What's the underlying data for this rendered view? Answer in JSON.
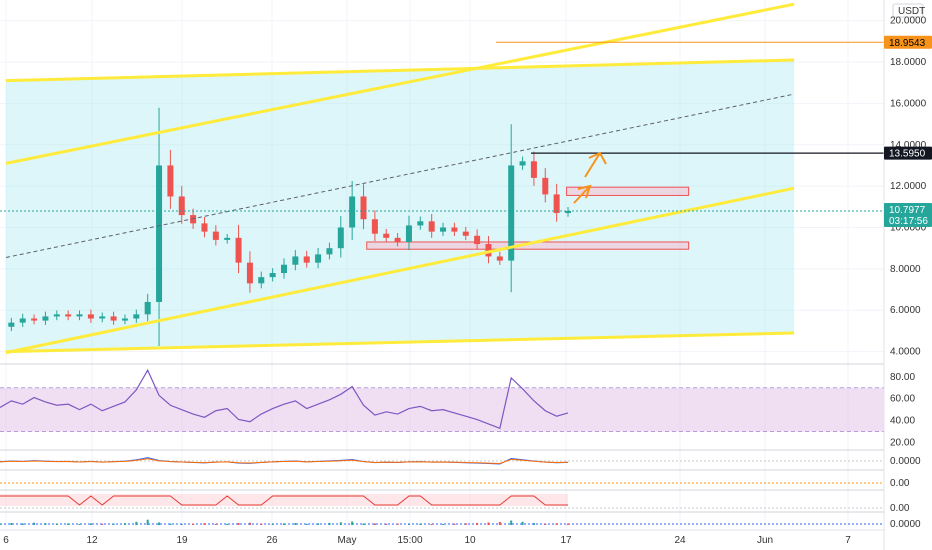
{
  "header": {
    "currency": "USDT"
  },
  "chart_data": {
    "type": "candlestick",
    "price_axis": {
      "ticks": [
        "20.0000",
        "18.0000",
        "16.0000",
        "14.0000",
        "12.0000",
        "10.0000",
        "8.0000",
        "6.0000",
        "4.0000"
      ],
      "range": [
        3.4,
        21.0
      ]
    },
    "time_axis": {
      "ticks": [
        "6",
        "12",
        "19",
        "26",
        "May",
        "15:00",
        "10",
        "17",
        "24",
        "Jun",
        "7"
      ]
    },
    "badges": {
      "high": {
        "text": "18.9543",
        "value": 18.9543,
        "color": "#f7931a"
      },
      "level": {
        "text": "13.5950",
        "value": 13.595,
        "color": "#131722"
      },
      "last": {
        "text": "10.7977",
        "value": 10.7977,
        "countdown": "03:17:56",
        "color": "#26a69a"
      }
    },
    "channel_lines": [
      {
        "from": {
          "day": 0,
          "price": 17.1
        },
        "to": {
          "day": 71,
          "price": 18.1
        }
      },
      {
        "from": {
          "day": 0,
          "price": 4.0
        },
        "to": {
          "day": 71,
          "price": 4.9
        }
      },
      {
        "from": {
          "day": 0,
          "price": 13.1
        },
        "to": {
          "day": 71,
          "price": 20.8
        }
      },
      {
        "from": {
          "day": 0,
          "price": 3.95
        },
        "to": {
          "day": 71,
          "price": 11.9
        }
      }
    ],
    "mid_line": {
      "from": {
        "day": 0,
        "price": 8.55
      },
      "to": {
        "day": 71,
        "price": 16.45
      }
    },
    "zones": [
      {
        "from_day": 32.5,
        "to_day": 61.5,
        "low": 8.95,
        "high": 9.3
      },
      {
        "from_day": 50.5,
        "to_day": 61.5,
        "low": 11.55,
        "high": 11.95
      }
    ],
    "series": [
      {
        "name": "Price",
        "values": [
          5.2,
          5.4,
          5.6,
          5.5,
          5.7,
          5.8,
          5.7,
          5.8,
          5.6,
          5.7,
          5.5,
          5.6,
          5.8,
          6.4,
          13.0,
          11.5,
          10.6,
          10.2,
          9.8,
          9.4,
          9.5,
          8.3,
          7.3,
          7.6,
          7.8,
          8.2,
          8.6,
          8.3,
          8.7,
          9.0,
          10.0,
          11.5,
          10.4,
          9.7,
          9.5,
          9.3,
          10.1,
          10.3,
          9.8,
          10.0,
          9.8,
          9.6,
          9.2,
          8.6,
          8.4,
          13.0,
          13.2,
          12.4,
          11.6,
          10.7,
          10.8
        ]
      },
      {
        "name": "RSI",
        "values": [
          52,
          58,
          55,
          61,
          57,
          54,
          55,
          50,
          55,
          49,
          53,
          57,
          68,
          86,
          63,
          54,
          50,
          46,
          43,
          49,
          51,
          41,
          39,
          46,
          51,
          55,
          58,
          51,
          55,
          59,
          64,
          71,
          54,
          45,
          48,
          46,
          51,
          53,
          49,
          50,
          47,
          44,
          41,
          37,
          33,
          79,
          69,
          58,
          49,
          44,
          47
        ]
      }
    ],
    "rsi_axis": {
      "ticks": [
        "80.00",
        "60.00",
        "40.00",
        "20.00"
      ],
      "band": [
        30,
        70
      ]
    },
    "indicator_axes": [
      "0.0000",
      "0.00",
      "0.00",
      "0.0000"
    ]
  }
}
